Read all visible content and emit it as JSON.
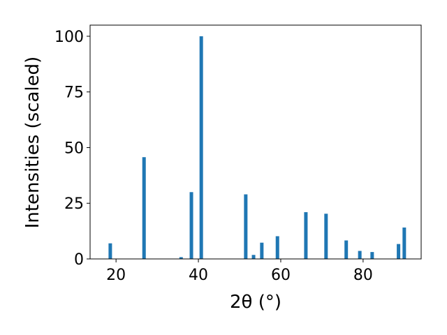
{
  "chart_data": {
    "type": "bar",
    "x": [
      18.6,
      26.8,
      35.8,
      38.3,
      40.7,
      51.5,
      53.4,
      55.4,
      59.2,
      66.1,
      71.0,
      75.9,
      79.2,
      82.2,
      88.6,
      90.0
    ],
    "values": [
      7,
      45.7,
      0.8,
      30,
      100,
      29,
      1.8,
      7.3,
      10.2,
      21,
      20.3,
      8.3,
      3.6,
      3.1,
      6.7,
      14.1
    ],
    "color": "#1f77b4",
    "xlabel": "2θ (°)",
    "ylabel": "Intensities (scaled)",
    "xlim": [
      13.7,
      94.1
    ],
    "xticks": [
      20,
      40,
      60,
      80
    ],
    "ylim": [
      0,
      105
    ],
    "yticks": [
      0,
      25,
      50,
      75,
      100
    ]
  }
}
